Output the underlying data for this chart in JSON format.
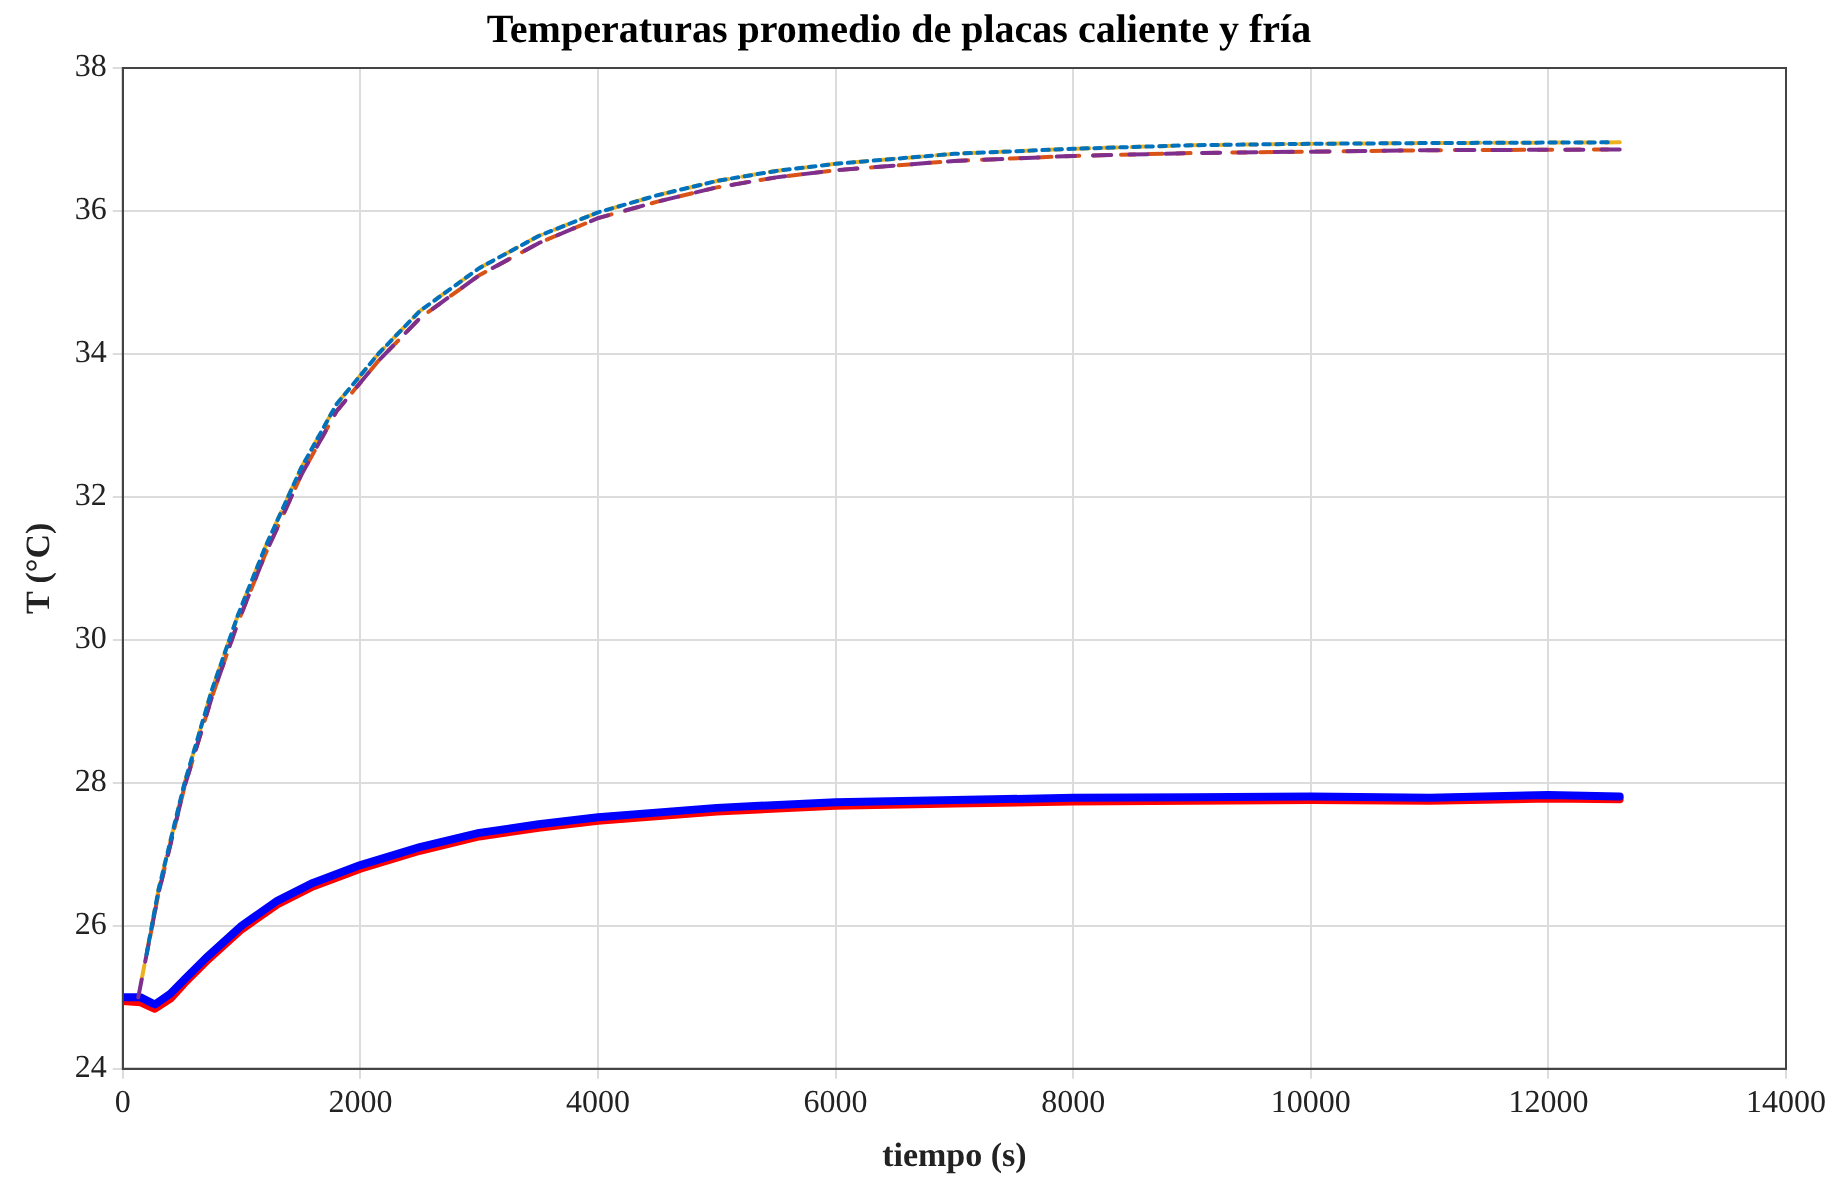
{
  "chart_data": {
    "type": "line",
    "title": "Temperaturas promedio de placas caliente y fría",
    "xlabel": "tiempo (s)",
    "ylabel": "T (°C)",
    "xlim": [
      0,
      14000
    ],
    "xticks": [
      0,
      2000,
      4000,
      6000,
      8000,
      10000,
      12000,
      14000
    ],
    "ylim": [
      24,
      38
    ],
    "yticks": [
      24,
      26,
      28,
      30,
      32,
      34,
      36,
      38
    ],
    "grid": true,
    "legend": false,
    "marker": "none",
    "series": [
      {
        "color": "#edb120",
        "line_style": "dashed",
        "x": [
          160,
          300,
          520,
          750,
          970,
          1200,
          1500,
          1800,
          2150,
          2500,
          3000,
          3500,
          4000,
          4500,
          5000,
          5500,
          6000,
          7000,
          8000,
          9000,
          10000,
          11000,
          12600
        ],
        "values": [
          25.26,
          26.5,
          28.0,
          29.3,
          30.35,
          31.3,
          32.4,
          33.3,
          34.0,
          34.6,
          35.2,
          35.65,
          35.98,
          36.22,
          36.42,
          36.56,
          36.66,
          36.8,
          36.87,
          36.92,
          36.94,
          36.95,
          36.96
        ]
      },
      {
        "color": "#0072bd",
        "line_style": "dotted",
        "x": [
          200,
          300,
          520,
          750,
          970,
          1200,
          1500,
          1800,
          2150,
          2500,
          3000,
          3500,
          4000,
          4500,
          5000,
          5500,
          6000,
          7000,
          8000,
          9000,
          10000,
          11000,
          12500
        ],
        "values": [
          25.6,
          26.5,
          28.0,
          29.3,
          30.35,
          31.3,
          32.4,
          33.3,
          34.0,
          34.6,
          35.2,
          35.65,
          35.98,
          36.22,
          36.42,
          36.56,
          36.66,
          36.8,
          36.87,
          36.92,
          36.94,
          36.95,
          36.96
        ]
      },
      {
        "color": "#d95319",
        "line_style": "dashed",
        "x": [
          230,
          300,
          520,
          750,
          970,
          1200,
          1500,
          1800,
          2150,
          2500,
          3000,
          3500,
          4000,
          4500,
          5000,
          5500,
          6000,
          7000,
          8000,
          9000,
          10000,
          11000,
          12500
        ],
        "values": [
          25.85,
          26.45,
          27.95,
          29.2,
          30.25,
          31.2,
          32.3,
          33.2,
          33.9,
          34.5,
          35.1,
          35.55,
          35.9,
          36.13,
          36.33,
          36.47,
          36.57,
          36.7,
          36.77,
          36.81,
          36.83,
          36.85,
          36.86
        ]
      },
      {
        "color": "#7e2f8e",
        "line_style": "dashed",
        "x": [
          130,
          300,
          520,
          750,
          970,
          1200,
          1500,
          1800,
          2150,
          2500,
          3000,
          3500,
          4000,
          4500,
          5000,
          5500,
          6000,
          7000,
          8000,
          9000,
          10000,
          11000,
          12600
        ],
        "values": [
          25.0,
          26.45,
          27.95,
          29.2,
          30.25,
          31.2,
          32.3,
          33.2,
          33.9,
          34.5,
          35.1,
          35.55,
          35.9,
          36.13,
          36.33,
          36.47,
          36.57,
          36.7,
          36.77,
          36.81,
          36.83,
          36.85,
          36.86
        ]
      },
      {
        "color": "#ff0000",
        "line_style": "solid",
        "x": [
          0,
          150,
          270,
          400,
          520,
          700,
          1000,
          1300,
          1600,
          2000,
          2500,
          3000,
          3500,
          4000,
          5000,
          6000,
          7000,
          8000,
          9000,
          10000,
          11000,
          12000,
          12600
        ],
        "values": [
          24.95,
          24.93,
          24.84,
          24.98,
          25.2,
          25.5,
          25.95,
          26.3,
          26.55,
          26.8,
          27.05,
          27.25,
          27.37,
          27.47,
          27.6,
          27.68,
          27.71,
          27.74,
          27.75,
          27.76,
          27.75,
          27.78,
          27.77
        ]
      },
      {
        "color": "#0000ff",
        "line_style": "solid",
        "x": [
          0,
          150,
          270,
          400,
          520,
          700,
          1000,
          1300,
          1600,
          2000,
          2500,
          3000,
          3500,
          4000,
          5000,
          6000,
          7000,
          8000,
          9000,
          10000,
          11000,
          12000,
          12600
        ],
        "values": [
          25.0,
          25.0,
          24.9,
          25.05,
          25.25,
          25.55,
          26.0,
          26.35,
          26.6,
          26.85,
          27.1,
          27.3,
          27.42,
          27.52,
          27.65,
          27.73,
          27.76,
          27.79,
          27.8,
          27.81,
          27.79,
          27.83,
          27.81
        ]
      }
    ]
  }
}
